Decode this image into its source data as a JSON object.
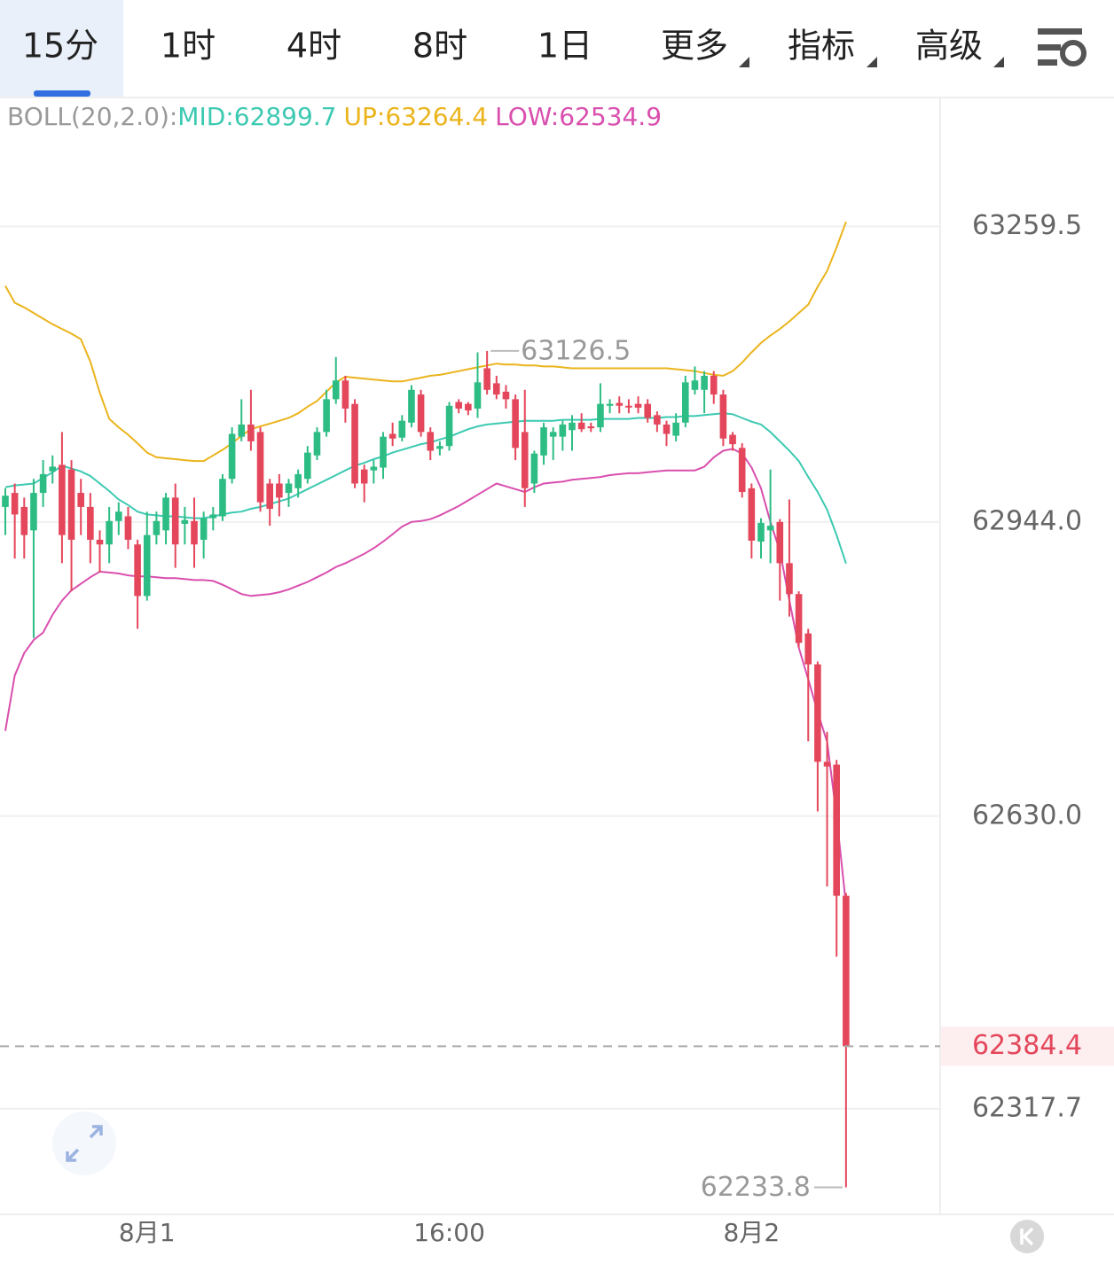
{
  "tabs": [
    "15分",
    "1时",
    "4时",
    "8时",
    "1日",
    "更多",
    "指标",
    "高级"
  ],
  "selected_tab": 0,
  "chart_data": {
    "type": "candlestick",
    "indicator": {
      "label": "BOLL(20,2.0):",
      "items": [
        "MID:62899.7",
        "UP:63264.4",
        "LOW:62534.9"
      ]
    },
    "x": [
      null,
      null,
      null,
      null,
      null,
      null,
      null,
      null,
      null,
      null,
      null,
      null,
      null,
      null,
      null,
      "8月1",
      null,
      null,
      null,
      null,
      null,
      null,
      null,
      null,
      null,
      null,
      null,
      null,
      null,
      null,
      null,
      null,
      null,
      null,
      null,
      null,
      null,
      null,
      null,
      null,
      null,
      null,
      null,
      null,
      null,
      null,
      null,
      "16:00",
      null,
      null,
      null,
      null,
      null,
      null,
      null,
      null,
      null,
      null,
      null,
      null,
      null,
      null,
      null,
      null,
      null,
      null,
      null,
      null,
      null,
      null,
      null,
      null,
      null,
      null,
      null,
      null,
      null,
      null,
      null,
      "8月2",
      null,
      null,
      null,
      null,
      null,
      null,
      null,
      null,
      null,
      null
    ],
    "open": [
      62960,
      62975,
      62960,
      62935,
      62975,
      62998,
      63005,
      63000,
      62975,
      62960,
      62925,
      62920,
      62945,
      62950,
      62920,
      62865,
      62930,
      62935,
      62970,
      62942,
      62945,
      62925,
      62948,
      62950,
      62990,
      63035,
      63048,
      63040,
      62985,
      62985,
      62975,
      62980,
      62990,
      63015,
      63040,
      63075,
      63095,
      63070,
      63000,
      62999,
      63002,
      63038,
      63034,
      63050,
      63080,
      63040,
      63022,
      63025,
      63072,
      63070,
      63065,
      63108,
      63092,
      63083,
      63075,
      63040,
      62985,
      63015,
      63035,
      63035,
      63042,
      63050,
      63046,
      63045,
      63068,
      63071,
      63068,
      63070,
      63070,
      63058,
      63048,
      63036,
      63050,
      63085,
      63085,
      63100,
      63080,
      63037,
      63023,
      62980,
      62923,
      62935,
      62944,
      62900,
      62867,
      62825,
      62792,
      62688,
      62685,
      62545
    ],
    "high": [
      62980,
      62985,
      62970,
      62990,
      63010,
      63015,
      63040,
      63010,
      62990,
      62975,
      62935,
      62960,
      62965,
      62960,
      62925,
      62955,
      62955,
      62975,
      62985,
      62960,
      62970,
      62955,
      62960,
      62995,
      63045,
      63075,
      63085,
      63045,
      62990,
      62995,
      62990,
      63000,
      63025,
      63045,
      63085,
      63120,
      63100,
      63075,
      63005,
      63010,
      63040,
      63050,
      63058,
      63090,
      63085,
      63045,
      63030,
      63072,
      63075,
      63072,
      63125,
      63126.5,
      63100,
      63090,
      63080,
      63085,
      63020,
      63050,
      63045,
      63052,
      63058,
      63060,
      63050,
      63092,
      63075,
      63078,
      63075,
      63078,
      63075,
      63062,
      63052,
      63060,
      63100,
      63110,
      63105,
      63105,
      63085,
      63040,
      63028,
      62985,
      62948,
      63000,
      62947,
      62968,
      62870,
      62830,
      62795,
      62720,
      62690,
      62548
    ],
    "low": [
      62930,
      62905,
      62905,
      62820,
      62960,
      62985,
      62900,
      62870,
      62930,
      62900,
      62890,
      62900,
      62930,
      62915,
      62830,
      62860,
      62920,
      62920,
      62895,
      62920,
      62895,
      62905,
      62935,
      62945,
      62985,
      63030,
      63020,
      62955,
      62940,
      62950,
      62960,
      62970,
      62985,
      63010,
      63035,
      63070,
      63050,
      62980,
      62965,
      62985,
      62990,
      63025,
      63030,
      63045,
      63035,
      63010,
      63015,
      63020,
      63060,
      63058,
      63055,
      63080,
      63075,
      63065,
      63010,
      62960,
      62975,
      63005,
      63010,
      63020,
      63020,
      63040,
      63040,
      63040,
      63060,
      63060,
      63060,
      63060,
      63050,
      63040,
      63025,
      63030,
      63045,
      63080,
      63060,
      63070,
      63025,
      63020,
      62970,
      62905,
      62905,
      62900,
      62860,
      62843,
      62810,
      62710,
      62635,
      62555,
      62480,
      62233.8
    ],
    "close": [
      62972,
      62952,
      62930,
      62975,
      62995,
      63003,
      62930,
      62925,
      62960,
      62925,
      62920,
      62945,
      62955,
      62925,
      62865,
      62930,
      62945,
      62970,
      62920,
      62946,
      62920,
      62948,
      62952,
      62990,
      63038,
      63048,
      63030,
      62965,
      62958,
      62970,
      62985,
      62995,
      63018,
      63040,
      63075,
      63095,
      63065,
      62985,
      62985,
      63003,
      63035,
      63033,
      63052,
      63085,
      63040,
      63020,
      63025,
      63068,
      63065,
      63063,
      63093,
      63085,
      63080,
      63075,
      63023,
      62980,
      63017,
      63045,
      63040,
      63048,
      63050,
      63043,
      63044,
      63070,
      63070,
      63068,
      63067,
      63066,
      63055,
      63048,
      63038,
      63050,
      63093,
      63095,
      63100,
      63080,
      63033,
      63027,
      62976,
      62924,
      62943,
      62940,
      62900,
      62867,
      62815,
      62792,
      62688,
      62683,
      62545,
      62384.4
    ],
    "up_color": "#2dbd84",
    "down_color": "#e4475b",
    "bands": [
      {
        "name": "MID",
        "color": "#3cc9b2",
        "values": [
          62981,
          62983,
          62984,
          62985,
          62991,
          62997,
          63004,
          63001,
          62998,
          62993,
          62985,
          62977,
          62968,
          62962,
          62955,
          62952,
          62951,
          62950,
          62950,
          62949,
          62948,
          62948,
          62950,
          62952,
          62954,
          62955,
          62958,
          62960,
          62963,
          62966,
          62969,
          62974,
          62979,
          62984,
          62989,
          62994,
          62999,
          63004,
          63007,
          63011,
          63014,
          63018,
          63021,
          63024,
          63027,
          63029,
          63032,
          63035,
          63039,
          63043,
          63046,
          63048,
          63049,
          63050,
          63051,
          63052,
          63052,
          63052,
          63052,
          63053,
          63053,
          63053,
          63053,
          63054,
          63054,
          63054,
          63054,
          63055,
          63055,
          63055,
          63056,
          63056,
          63057,
          63057,
          63058,
          63059,
          63060,
          63059,
          63055,
          63051,
          63048,
          63040,
          63030,
          63020,
          63009,
          62992,
          62976,
          62957,
          62930,
          62899.7
        ]
      },
      {
        "name": "UP",
        "color": "#ebb41c",
        "values": [
          63196,
          63178,
          63173,
          63167,
          63161,
          63155,
          63150,
          63145,
          63139,
          63115,
          63082,
          63054,
          63045,
          63037,
          63028,
          63018,
          63013,
          63012,
          63011,
          63010,
          63009,
          63009,
          63015,
          63021,
          63028,
          63036,
          63043,
          63046,
          63049,
          63052,
          63055,
          63060,
          63067,
          63073,
          63083,
          63093,
          63099,
          63098,
          63097,
          63096,
          63095,
          63094,
          63094,
          63096,
          63098,
          63100,
          63101,
          63103,
          63105,
          63107,
          63109,
          63111,
          63113,
          63112,
          63112,
          63111,
          63111,
          63110,
          63110,
          63109,
          63108,
          63108,
          63108,
          63108,
          63108,
          63108,
          63108,
          63108,
          63108,
          63108,
          63108,
          63107,
          63106,
          63105,
          63103,
          63101,
          63100,
          63105,
          63114,
          63125,
          63135,
          63143,
          63150,
          63158,
          63167,
          63176,
          63195,
          63212,
          63237,
          63264.4
        ]
      },
      {
        "name": "LOW",
        "color": "#d94fae",
        "values": [
          62721,
          62780,
          62804,
          62818,
          62826,
          62845,
          62860,
          62871,
          62878,
          62885,
          62891,
          62890,
          62889,
          62887,
          62886,
          62886,
          62885,
          62884,
          62884,
          62883,
          62882,
          62882,
          62881,
          62877,
          62872,
          62867,
          62865,
          62866,
          62867,
          62869,
          62872,
          62876,
          62880,
          62885,
          62890,
          62896,
          62900,
          62905,
          62910,
          62916,
          62923,
          62931,
          62939,
          62944,
          62945,
          62947,
          62951,
          62956,
          62961,
          62967,
          62973,
          62979,
          62985,
          62982,
          62979,
          62976,
          62981,
          62985,
          62986,
          62987,
          62989,
          62990,
          62991,
          62992,
          62994,
          62995,
          62996,
          62996,
          62997,
          62998,
          62999,
          62999,
          62999,
          62999,
          63003,
          63013,
          63020,
          63022,
          63017,
          63002,
          62980,
          62944,
          62913,
          62860,
          62810,
          62776,
          62741,
          62709,
          62630,
          62534.9
        ]
      }
    ],
    "ylim": [
      62205,
      63397
    ],
    "yticks": [
      63259.5,
      {
        "value": 62944,
        "label": "62944.0"
      },
      {
        "value": 62630,
        "label": "62630.0"
      },
      62317.7
    ],
    "grid": true
  }
}
